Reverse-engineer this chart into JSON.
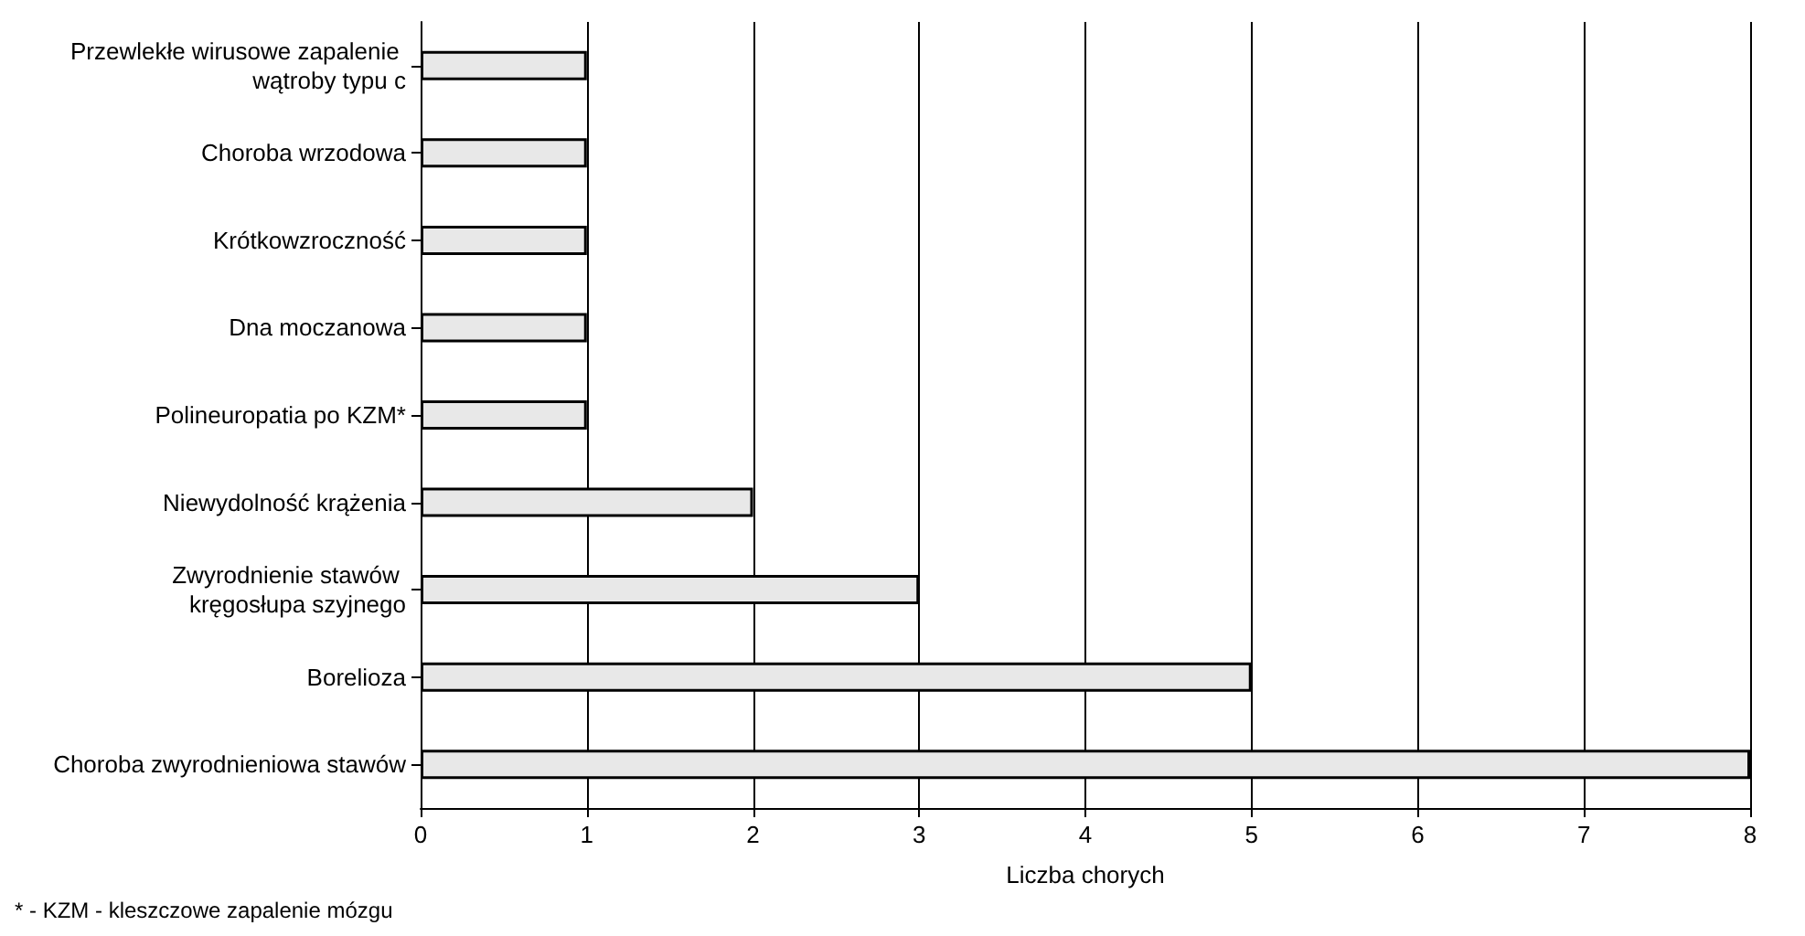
{
  "chart_data": {
    "type": "bar",
    "orientation": "horizontal",
    "categories": [
      "Przewlekłe wirusowe zapalenie wątroby typu c",
      "Choroba wrzodowa",
      "Krótkowzroczność",
      "Dna moczanowa",
      "Polineuropatia po KZM*",
      "Niewydolność krążenia",
      "Zwyrodnienie stawów kręgosłupa szyjnego",
      "Borelioza",
      "Choroba zwyrodnieniowa stawów"
    ],
    "values": [
      1,
      1,
      1,
      1,
      1,
      2,
      3,
      5,
      8
    ],
    "color": "#e8e8e8",
    "xlabel": "Liczba chorych",
    "xlim": [
      0,
      8
    ],
    "xticks": [
      0,
      1,
      2,
      3,
      4,
      5,
      6,
      7,
      8
    ],
    "grid": "x",
    "annotations": [
      "* - KZM - kleszczowe zapalenie mózgu"
    ]
  }
}
